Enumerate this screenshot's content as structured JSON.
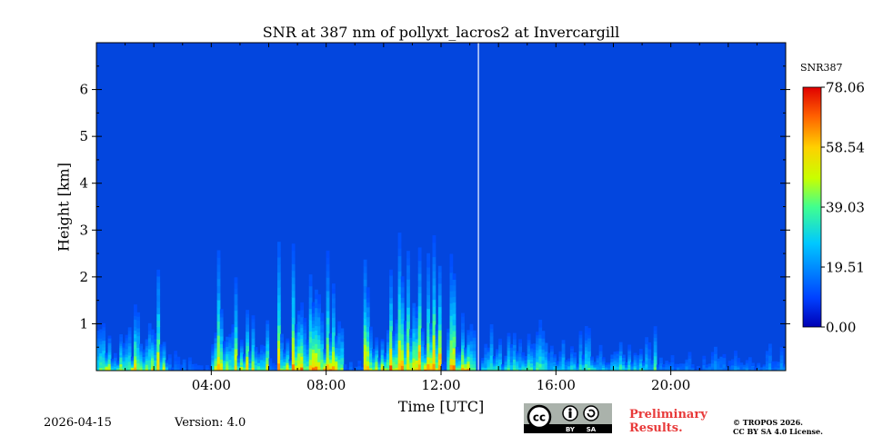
{
  "chart_data": {
    "type": "heatmap",
    "title": "SNR at 387 nm of pollyxt_lacros2 at Invercargill",
    "xlabel": "Time [UTC]",
    "ylabel": "Height [km]",
    "xlim_hours": [
      0,
      24
    ],
    "ylim_km": [
      0,
      7
    ],
    "x_ticks": [
      {
        "value": 4,
        "label": "04:00"
      },
      {
        "value": 8,
        "label": "08:00"
      },
      {
        "value": 12,
        "label": "12:00"
      },
      {
        "value": 16,
        "label": "16:00"
      },
      {
        "value": 20,
        "label": "20:00"
      }
    ],
    "y_ticks": [
      {
        "value": 1,
        "label": "1"
      },
      {
        "value": 2,
        "label": "2"
      },
      {
        "value": 3,
        "label": "3"
      },
      {
        "value": 4,
        "label": "4"
      },
      {
        "value": 5,
        "label": "5"
      },
      {
        "value": 6,
        "label": "6"
      }
    ],
    "colorbar": {
      "label": "SNR387",
      "min": 0.0,
      "max": 78.06,
      "ticks": [
        "78.06",
        "58.54",
        "39.03",
        "19.51",
        "0.00"
      ],
      "colormap": "jet"
    },
    "data_gap_hours": 13.3,
    "high_snr_segments": [
      {
        "start": 0.0,
        "end": 2.5,
        "peak_snr": 65
      },
      {
        "start": 4.0,
        "end": 6.0,
        "peak_snr": 68
      },
      {
        "start": 6.3,
        "end": 7.6,
        "peak_snr": 76
      },
      {
        "start": 7.6,
        "end": 8.6,
        "peak_snr": 75
      },
      {
        "start": 9.3,
        "end": 10.4,
        "peak_snr": 74
      },
      {
        "start": 10.4,
        "end": 12.0,
        "peak_snr": 78
      },
      {
        "start": 12.2,
        "end": 13.2,
        "peak_snr": 70
      },
      {
        "start": 13.4,
        "end": 19.5,
        "peak_snr": 45
      },
      {
        "start": 19.5,
        "end": 24.0,
        "peak_snr": 25
      }
    ]
  },
  "footer": {
    "date": "2026-04-15",
    "version": "Version: 4.0",
    "preliminary": "Preliminary\nResults.",
    "copyright": "© TROPOS 2026.\nCC BY SA 4.0 License.",
    "license_badge": {
      "cc": "cc",
      "by": "BY",
      "sa": "SA"
    }
  }
}
